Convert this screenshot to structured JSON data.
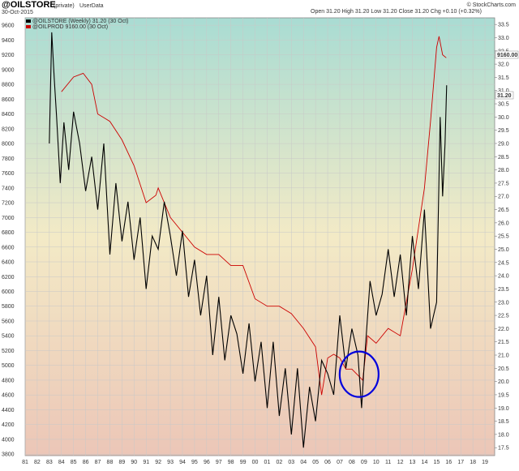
{
  "header": {
    "symbol": "@OILSTORE",
    "private_tag": "(private)",
    "source": "UserData",
    "date": "30-Oct-2015",
    "quote": "Open 31.20 High 31.20 Low 31.20 Close 31.20 Chg +0.10 (+0.32%)",
    "watermark": "© StockCharts.com"
  },
  "legend": {
    "series1_label": "@OILSTORE (Weekly) 31.20 (30 Oct)",
    "series2_label": "@OILPROD 9160.00 (30 Oct)",
    "series1_color": "#000000",
    "series2_color": "#cc0000"
  },
  "last_value_tags": {
    "left_label": "9160.00",
    "right_label": "31.20"
  },
  "colors": {
    "background_top": "#a9dcd3",
    "background_mid": "#f3eac6",
    "background_bottom": "#ecc6b7",
    "gridline": "#c8c8c8",
    "circle": "#0000dd"
  },
  "chart_data": {
    "type": "line",
    "title": "@OILSTORE",
    "x_ticks": [
      "81",
      "82",
      "83",
      "84",
      "85",
      "86",
      "87",
      "88",
      "89",
      "90",
      "91",
      "92",
      "93",
      "94",
      "95",
      "96",
      "97",
      "98",
      "99",
      "00",
      "01",
      "02",
      "03",
      "04",
      "05",
      "06",
      "07",
      "08",
      "09",
      "10",
      "11",
      "12",
      "13",
      "14",
      "15",
      "16",
      "17",
      "18",
      "19"
    ],
    "xlim": [
      1981.0,
      2019.8
    ],
    "y_left": {
      "ticks": [
        "3800",
        "4000",
        "4200",
        "4400",
        "4600",
        "4800",
        "5000",
        "5200",
        "5400",
        "5600",
        "5800",
        "6000",
        "6200",
        "6400",
        "6600",
        "6800",
        "7000",
        "7200",
        "7400",
        "7600",
        "7800",
        "8000",
        "8200",
        "8400",
        "8600",
        "8800",
        "9000",
        "9200",
        "9400",
        "9600"
      ],
      "ylim": [
        3780,
        9700
      ]
    },
    "y_right": {
      "ticks": [
        "17.5",
        "18.0",
        "18.5",
        "19.0",
        "19.5",
        "20.0",
        "20.5",
        "21.0",
        "21.5",
        "22.0",
        "22.5",
        "23.0",
        "23.5",
        "24.0",
        "24.5",
        "25.0",
        "25.5",
        "26.0",
        "26.5",
        "27.0",
        "27.5",
        "28.0",
        "28.5",
        "29.0",
        "29.5",
        "30.0",
        "30.5",
        "31.0",
        "31.5",
        "32.0",
        "32.5",
        "33.0",
        "33.5"
      ],
      "ylim": [
        17.2,
        33.75
      ]
    },
    "series": [
      {
        "name": "@OILSTORE (Weekly)",
        "axis": "right",
        "color": "#000000",
        "x": [
          1983.0,
          1983.2,
          1983.4,
          1983.6,
          1983.9,
          1984.2,
          1984.6,
          1985.0,
          1985.5,
          1986.0,
          1986.5,
          1987.0,
          1987.5,
          1988.0,
          1988.5,
          1989.0,
          1989.5,
          1990.0,
          1990.5,
          1991.0,
          1991.5,
          1992.0,
          1992.5,
          1993.0,
          1993.5,
          1994.0,
          1994.5,
          1995.0,
          1995.5,
          1996.0,
          1996.5,
          1997.0,
          1997.5,
          1998.0,
          1998.5,
          1999.0,
          1999.5,
          2000.0,
          2000.5,
          2001.0,
          2001.5,
          2002.0,
          2002.5,
          2003.0,
          2003.5,
          2004.0,
          2004.5,
          2005.0,
          2005.5,
          2006.0,
          2006.5,
          2007.0,
          2007.5,
          2008.0,
          2008.5,
          2008.8,
          2009.0,
          2009.5,
          2010.0,
          2010.5,
          2011.0,
          2011.5,
          2012.0,
          2012.5,
          2013.0,
          2013.5,
          2014.0,
          2014.5,
          2015.0,
          2015.3,
          2015.5,
          2015.7,
          2015.83
        ],
        "y": [
          29.0,
          33.2,
          31.5,
          30.0,
          27.5,
          29.8,
          28.0,
          30.2,
          29.0,
          27.2,
          28.5,
          26.5,
          29.0,
          24.8,
          27.5,
          25.3,
          26.8,
          24.6,
          26.2,
          23.5,
          25.5,
          25.0,
          26.8,
          25.5,
          24.0,
          25.7,
          23.2,
          24.6,
          22.5,
          24.0,
          21.0,
          23.2,
          20.8,
          22.5,
          21.8,
          20.3,
          22.2,
          20.0,
          21.5,
          19.0,
          21.5,
          18.7,
          20.5,
          18.0,
          20.5,
          17.5,
          19.8,
          18.5,
          20.8,
          20.3,
          19.5,
          22.5,
          20.5,
          22.0,
          21.0,
          19.0,
          20.5,
          23.8,
          22.5,
          23.3,
          25.0,
          23.2,
          24.8,
          22.5,
          25.5,
          23.5,
          26.5,
          22.0,
          23.0,
          30.0,
          27.0,
          29.0,
          31.2
        ]
      },
      {
        "name": "@OILPROD",
        "axis": "left",
        "color": "#cc0000",
        "x": [
          1984.0,
          1985.0,
          1985.8,
          1986.5,
          1987.0,
          1987.5,
          1988.0,
          1989.0,
          1990.0,
          1991.0,
          1991.8,
          1992.0,
          1993.0,
          1994.0,
          1995.0,
          1996.0,
          1997.0,
          1998.0,
          1999.0,
          2000.0,
          2001.0,
          2002.0,
          2003.0,
          2004.0,
          2005.0,
          2005.5,
          2006.0,
          2006.5,
          2007.0,
          2007.5,
          2008.0,
          2008.6,
          2008.9,
          2009.3,
          2010.0,
          2011.0,
          2012.0,
          2013.0,
          2014.0,
          2014.5,
          2015.0,
          2015.2,
          2015.5,
          2015.8
        ],
        "y": [
          8700,
          8900,
          8950,
          8800,
          8400,
          8350,
          8300,
          8050,
          7700,
          7200,
          7300,
          7400,
          7000,
          6800,
          6600,
          6500,
          6500,
          6350,
          6350,
          5900,
          5800,
          5800,
          5700,
          5500,
          5250,
          4600,
          5100,
          5150,
          5100,
          4950,
          4950,
          4850,
          4800,
          5400,
          5300,
          5500,
          5400,
          6300,
          7400,
          8300,
          9300,
          9450,
          9200,
          9160
        ]
      }
    ],
    "annotations": [
      {
        "type": "circle",
        "cx": 2008.6,
        "cy_left": 4880,
        "note": ""
      }
    ]
  }
}
